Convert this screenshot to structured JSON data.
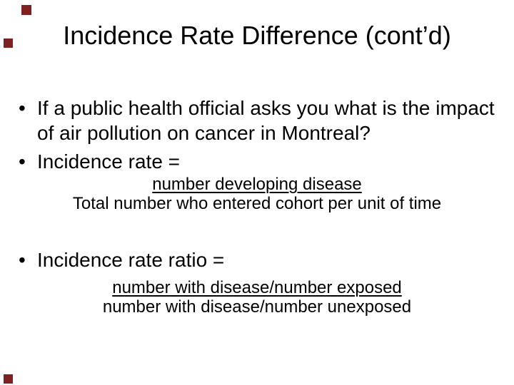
{
  "slide": {
    "title": "Incidence Rate Difference (cont’d)",
    "bullet_glyph": "•",
    "bullet1": {
      "line1": "If a public health official asks you what is the impact",
      "line2": "of air pollution on cancer in Montreal?"
    },
    "bullet2": {
      "label": "Incidence rate ="
    },
    "bullet3": {
      "label": "Incidence rate ratio ="
    },
    "fraction1": {
      "numerator": "number developing disease",
      "denominator": "Total number who entered cohort per unit of time"
    },
    "fraction2": {
      "numerator": "number with disease/number exposed",
      "denominator": "number with disease/number unexposed"
    },
    "colors": {
      "background": "#ffffff",
      "text": "#000000",
      "decor_square": "#7f2121"
    }
  }
}
